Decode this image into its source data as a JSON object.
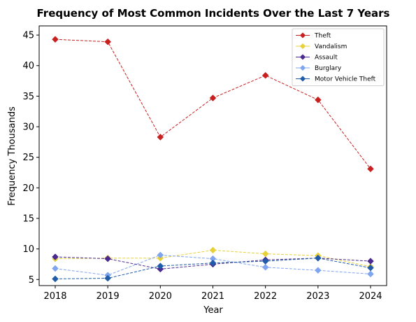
{
  "chart_data": {
    "type": "line",
    "title": "Frequency of Most Common Incidents Over the Last 7 Years",
    "xlabel": "Year",
    "ylabel": "Frequency Thousands",
    "x": [
      "2018",
      "2019",
      "2020",
      "2021",
      "2022",
      "2023",
      "2024"
    ],
    "ylim": [
      4,
      46.5
    ],
    "yticks": [
      5,
      10,
      15,
      20,
      25,
      30,
      35,
      40,
      45
    ],
    "grid": false,
    "legend_position": "top-right",
    "series": [
      {
        "name": "Theft",
        "color": "#c8201f",
        "values": [
          44.3,
          43.9,
          28.3,
          34.7,
          38.4,
          34.4,
          23.1
        ]
      },
      {
        "name": "Vandalism",
        "color": "#e8d03a",
        "values": [
          8.4,
          8.5,
          8.5,
          9.8,
          9.2,
          8.9,
          7.1
        ]
      },
      {
        "name": "Assault",
        "color": "#4b2a8f",
        "values": [
          8.7,
          8.4,
          6.7,
          7.5,
          8.2,
          8.5,
          8.0
        ]
      },
      {
        "name": "Burglary",
        "color": "#7fa5f0",
        "values": [
          6.8,
          5.7,
          9.0,
          8.4,
          7.0,
          6.5,
          5.9
        ]
      },
      {
        "name": "Motor Vehicle Theft",
        "color": "#1f5ba8",
        "values": [
          5.1,
          5.2,
          7.2,
          7.7,
          8.0,
          8.5,
          6.9
        ]
      }
    ]
  }
}
